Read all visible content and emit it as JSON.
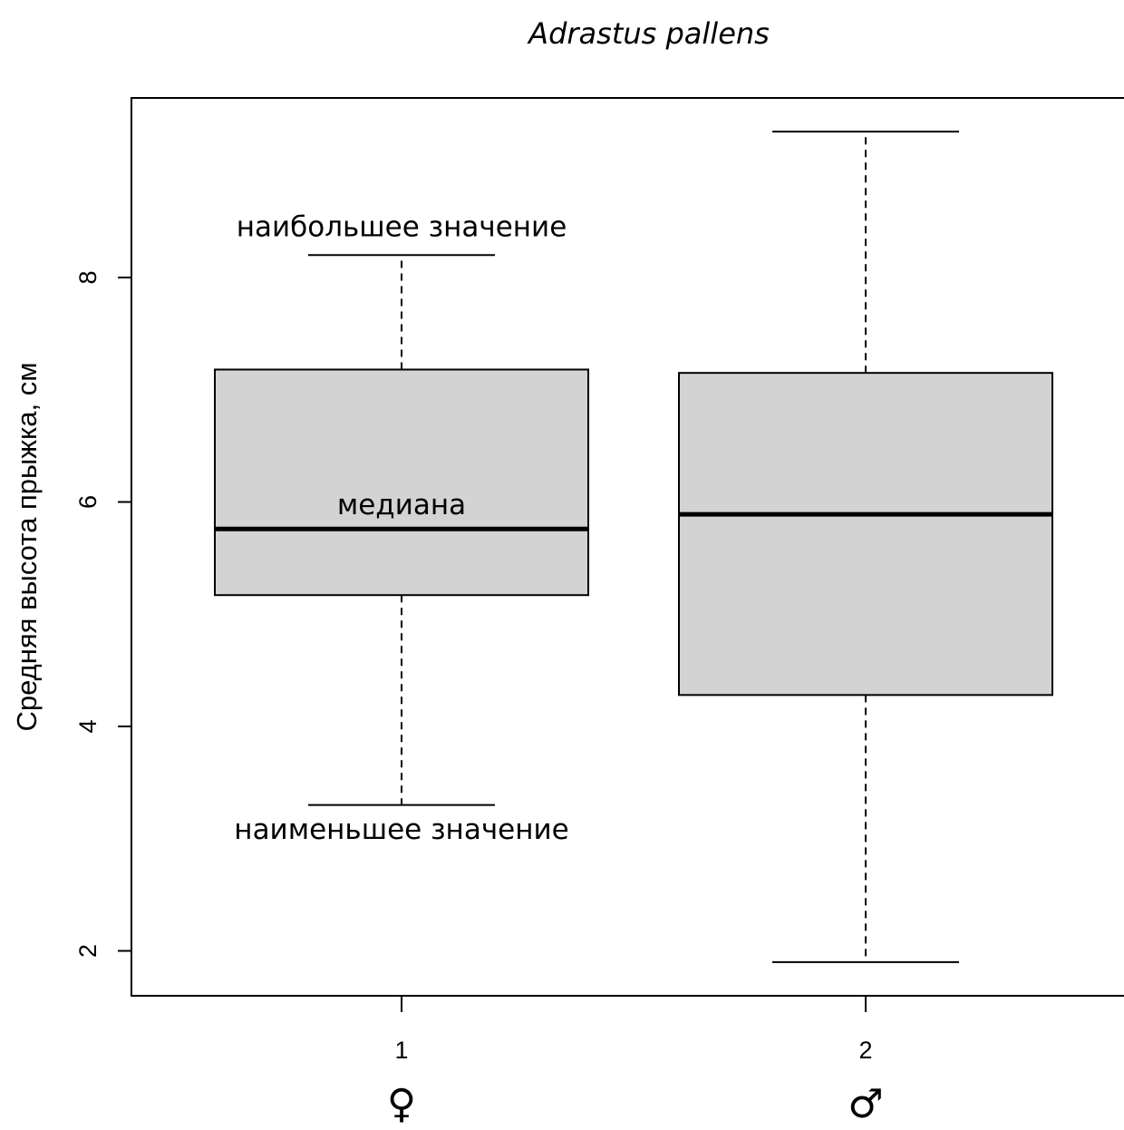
{
  "chart_data": {
    "type": "box",
    "title": "Adrastus pallens",
    "xlabel": "",
    "ylabel": "Средняя высота прыжка, см",
    "ylim": [
      1.6,
      9.6
    ],
    "yticks": [
      2,
      4,
      6,
      8
    ],
    "categories": [
      "1",
      "2"
    ],
    "category_symbols": [
      "♀",
      "♂"
    ],
    "boxes": [
      {
        "category": "1",
        "min": 3.3,
        "q1": 5.17,
        "median": 5.76,
        "q3": 7.18,
        "max": 8.2
      },
      {
        "category": "2",
        "min": 1.9,
        "q1": 4.28,
        "median": 5.89,
        "q3": 7.15,
        "max": 9.3
      }
    ],
    "annotations": [
      {
        "text": "наибольшее значение",
        "box": 0,
        "y": 8.45
      },
      {
        "text": "медиана",
        "box": 0,
        "y": 5.97
      },
      {
        "text": "наименьшее значение",
        "box": 0,
        "y": 3.08
      }
    ],
    "box_fill": "#d3d3d3",
    "grid": false
  }
}
